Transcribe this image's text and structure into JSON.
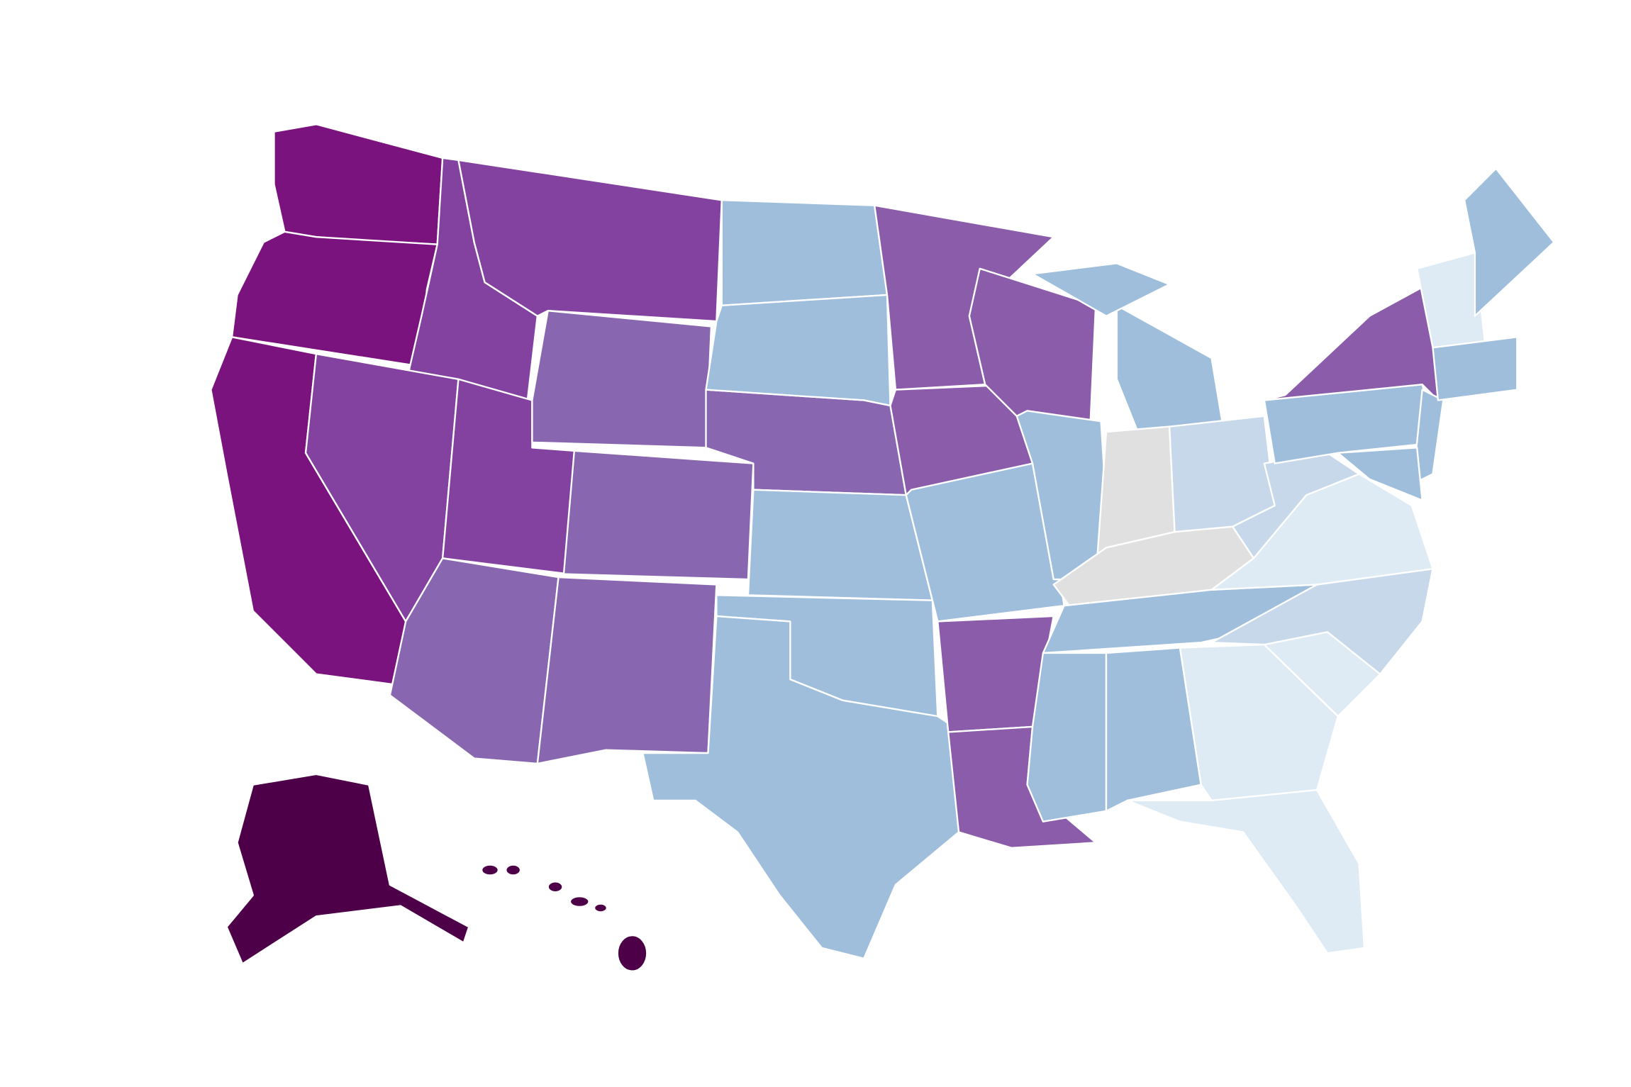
{
  "map": {
    "colors": [
      "#7a137d",
      "#8442a0",
      "#8867b0",
      "#8a5caa",
      "#9fbedc",
      "#c6d8ea",
      "#deeaf4",
      "#e0e0e0",
      "#4d0048"
    ]
  }
}
